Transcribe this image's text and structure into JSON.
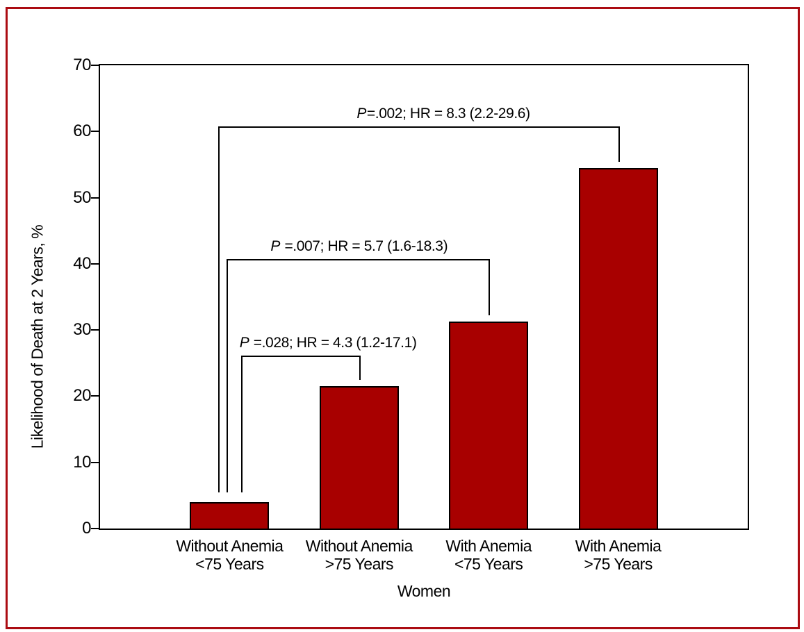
{
  "figure": {
    "frame_color": "#ab0c12",
    "background": "#ffffff"
  },
  "chart_data": {
    "type": "bar",
    "title": "",
    "xlabel": "Women",
    "ylabel": "Likelihood of Death at 2 Years, %",
    "ylim": [
      0,
      70
    ],
    "yticks": [
      0,
      10,
      20,
      30,
      40,
      50,
      60,
      70
    ],
    "grid": false,
    "legend": null,
    "bar_color": "#a80000",
    "bar_edge_color": "#000000",
    "categories": [
      [
        "Without Anemia",
        "<75 Years"
      ],
      [
        "Without Anemia",
        ">75 Years"
      ],
      [
        "With Anemia",
        "<75 Years"
      ],
      [
        "With Anemia",
        ">75 Years"
      ]
    ],
    "values": [
      4,
      21.5,
      31.3,
      54.5
    ],
    "comparisons": [
      {
        "label": "P=.002; HR = 8.3 (2.2-29.6)",
        "from_bar": 0,
        "to_bar": 3,
        "bracket_y": 60.8,
        "left_dx": -16,
        "text_dx": 36
      },
      {
        "label": "P =.007; HR = 5.7 (1.6-18.3)",
        "from_bar": 0,
        "to_bar": 2,
        "bracket_y": 40.7,
        "left_dx": -4,
        "text_dx": 2
      },
      {
        "label": "P =.028; HR = 4.3 (1.2-17.1)",
        "from_bar": 0,
        "to_bar": 1,
        "bracket_y": 26.1,
        "left_dx": 17,
        "text_dx": 40
      }
    ]
  }
}
